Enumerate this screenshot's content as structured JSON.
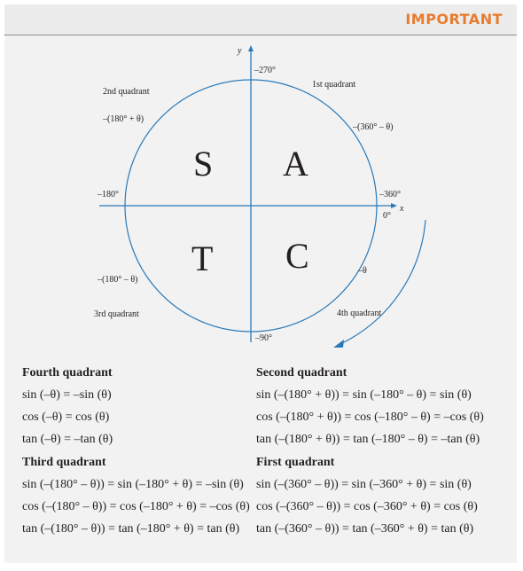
{
  "header": {
    "title": "IMPORTANT"
  },
  "diagram": {
    "y_axis": "y",
    "x_axis": "x",
    "label_top": "–270°",
    "label_left": "–180°",
    "label_right": "–360°",
    "label_zero": "0°",
    "label_bottom": "–90°",
    "label_neg_theta": "–θ",
    "q1": "1st quadrant",
    "q2": "2nd quadrant",
    "q3": "3rd quadrant",
    "q4": "4th quadrant",
    "q2_angle": "–(180° + θ)",
    "q1_angle": "–(360° – θ)",
    "q3_angle": "–(180° – θ)",
    "letter_s": "S",
    "letter_a": "A",
    "letter_t": "T",
    "letter_c": "C",
    "stroke_color": "#2a7ab9"
  },
  "fourth": {
    "title": "Fourth quadrant",
    "l1": "sin (–θ) = –sin (θ)",
    "l2": "cos (–θ) = cos (θ)",
    "l3": "tan (–θ) = –tan (θ)"
  },
  "second": {
    "title": "Second quadrant",
    "l1": "sin (–(180° + θ)) = sin (–180° – θ) = sin (θ)",
    "l2": "cos (–(180° + θ)) = cos (–180° – θ) = –cos (θ)",
    "l3": "tan (–(180° + θ)) = tan (–180° – θ) = –tan (θ)"
  },
  "third": {
    "title": "Third quadrant",
    "l1": "sin (–(180° – θ)) = sin (–180° + θ) = –sin (θ)",
    "l2": "cos (–(180° – θ)) = cos (–180° + θ) = –cos (θ)",
    "l3": "tan (–(180° – θ)) = tan (–180° + θ) = tan (θ)"
  },
  "first": {
    "title": "First quadrant",
    "l1": "sin (–(360° – θ)) = sin (–360° + θ) = sin (θ)",
    "l2": "cos (–(360° – θ)) = cos (–360° + θ) = cos (θ)",
    "l3": "tan (–(360° – θ)) = tan (–360° + θ) = tan (θ)"
  }
}
